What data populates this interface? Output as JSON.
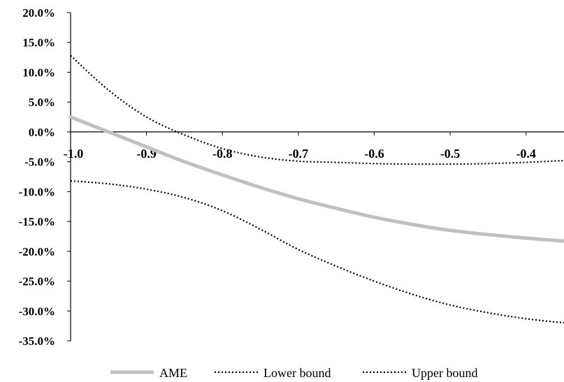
{
  "chart_data": {
    "type": "line",
    "title": "",
    "xlabel": "",
    "ylabel": "",
    "xlim": [
      -1.0,
      -0.35
    ],
    "ylim": [
      -35.0,
      20.0
    ],
    "x_ticks": [
      -1.0,
      -0.9,
      -0.8,
      -0.7,
      -0.6,
      -0.5,
      -0.4
    ],
    "x_tick_labels": [
      "-1.0",
      "-0.9",
      "-0.8",
      "-0.7",
      "-0.6",
      "-0.5",
      "-0.4"
    ],
    "y_ticks": [
      20,
      15,
      10,
      5,
      0,
      -5,
      -10,
      -15,
      -20,
      -25,
      -30,
      -35
    ],
    "y_tick_labels": [
      "20.0%",
      "15.0%",
      "10.0%",
      "5.0%",
      "0.0%",
      "-5.0%",
      "-10.0%",
      "-15.0%",
      "-20.0%",
      "-25.0%",
      "-30.0%",
      "-35.0%"
    ],
    "grid": false,
    "legend_position": "bottom",
    "x": [
      -1.0,
      -0.95,
      -0.9,
      -0.85,
      -0.8,
      -0.75,
      -0.7,
      -0.65,
      -0.6,
      -0.55,
      -0.5,
      -0.45,
      -0.4,
      -0.35
    ],
    "series": [
      {
        "name": "AME",
        "style": "solid",
        "color": "#c0c0c0",
        "values": [
          2.5,
          0.0,
          -2.5,
          -5.0,
          -7.2,
          -9.3,
          -11.2,
          -12.8,
          -14.3,
          -15.5,
          -16.5,
          -17.2,
          -17.8,
          -18.3
        ]
      },
      {
        "name": "Lower bound",
        "style": "dotted",
        "color": "#000000",
        "values": [
          -8.2,
          -8.7,
          -9.6,
          -11.0,
          -13.2,
          -16.3,
          -19.7,
          -22.5,
          -25.0,
          -27.2,
          -29.0,
          -30.3,
          -31.3,
          -32.0
        ]
      },
      {
        "name": "Upper bound",
        "style": "dotted",
        "color": "#000000",
        "values": [
          12.8,
          7.0,
          2.5,
          -0.5,
          -2.8,
          -4.2,
          -4.9,
          -5.1,
          -5.3,
          -5.4,
          -5.4,
          -5.3,
          -5.1,
          -4.8
        ]
      }
    ]
  }
}
